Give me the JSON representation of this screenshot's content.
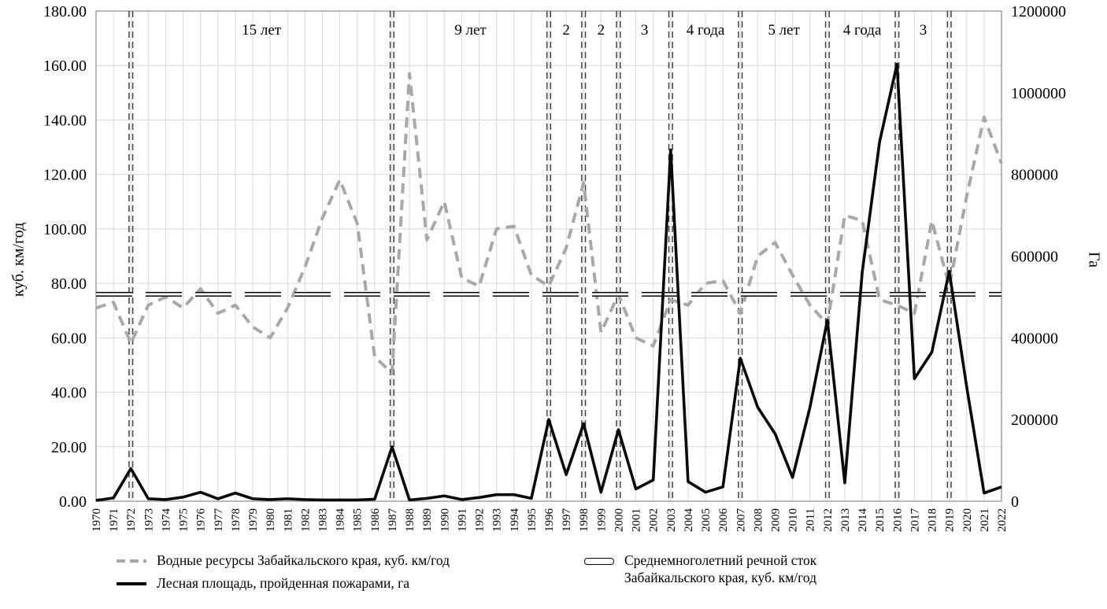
{
  "chart_data": {
    "type": "line",
    "title": "",
    "left_axis": {
      "title": "куб. км/год",
      "min": 0,
      "max": 180,
      "step": 20,
      "ticks": [
        "0.00",
        "20.00",
        "40.00",
        "60.00",
        "80.00",
        "100.00",
        "120.00",
        "140.00",
        "160.00",
        "180.00"
      ]
    },
    "right_axis": {
      "title": "Га",
      "min": 0,
      "max": 1200000,
      "step": 200000,
      "ticks": [
        "0",
        "200000",
        "400000",
        "600000",
        "800000",
        "1000000",
        "1200000"
      ]
    },
    "years": [
      1970,
      1971,
      1972,
      1973,
      1974,
      1975,
      1976,
      1977,
      1978,
      1979,
      1980,
      1981,
      1982,
      1983,
      1984,
      1985,
      1986,
      1987,
      1988,
      1989,
      1990,
      1991,
      1992,
      1993,
      1994,
      1995,
      1996,
      1997,
      1998,
      1999,
      2000,
      2001,
      2002,
      2003,
      2004,
      2005,
      2006,
      2007,
      2008,
      2009,
      2010,
      2011,
      2012,
      2013,
      2014,
      2015,
      2016,
      2017,
      2018,
      2019,
      2020,
      2021,
      2022
    ],
    "series": [
      {
        "name": "Водные ресурсы Забайкальского края, куб. км/год",
        "axis": "left",
        "style": "dashed-gray",
        "values": [
          71,
          73,
          58,
          72,
          75,
          71,
          78,
          69,
          72,
          64,
          60,
          71,
          86,
          104,
          118,
          102,
          53,
          47,
          157,
          96,
          110,
          82,
          79,
          100,
          101,
          83,
          79,
          93,
          117,
          62,
          76,
          60,
          57,
          74,
          72,
          80,
          81,
          69,
          90,
          95,
          83,
          72,
          65,
          105,
          103,
          74,
          72,
          69,
          103,
          79,
          112,
          141,
          124
        ]
      },
      {
        "name": "Лесная площадь, пройденная пожарами, га",
        "axis": "right",
        "style": "solid-black",
        "values": [
          2000,
          8000,
          80000,
          6000,
          4000,
          10000,
          22000,
          6000,
          20000,
          6000,
          4000,
          6000,
          4000,
          3000,
          3000,
          3000,
          5000,
          133000,
          3000,
          7000,
          13000,
          4000,
          9000,
          16000,
          16000,
          7000,
          200000,
          65000,
          190000,
          22000,
          175000,
          30000,
          52000,
          860000,
          48000,
          22000,
          35000,
          350000,
          230000,
          165000,
          58000,
          230000,
          443000,
          45000,
          560000,
          880000,
          1070000,
          300000,
          365000,
          563000,
          280000,
          20000,
          35000
        ]
      },
      {
        "name": "Среднемноголетний речной сток Забайкальского края, куб. км/год",
        "axis": "left",
        "style": "outlined-dash",
        "constant": 76
      }
    ],
    "period_boundaries": [
      1972,
      1987,
      1996,
      1998,
      2000,
      2003,
      2007,
      2012,
      2016,
      2019
    ],
    "period_labels": [
      "15 лет",
      "9 лет",
      "2",
      "2",
      "3",
      "4 года",
      "5 лет",
      "4 года",
      "3"
    ],
    "grid": true,
    "legend_position": "bottom"
  },
  "axes": {
    "left_title": "куб. км/год",
    "right_title": "Га"
  },
  "legend": {
    "water": "Водные ресурсы Забайкальского края, куб. км/год",
    "fire": "Лесная площадь, пройденная пожарами, га",
    "mean_line1": "Среднемноголетний речной сток",
    "mean_line2": "Забайкальского края, куб. км/год"
  },
  "colors": {
    "water": "#a8a8a8",
    "fire": "#0a0a0a",
    "grid": "#d9d9d9",
    "boundary": "#404040"
  }
}
